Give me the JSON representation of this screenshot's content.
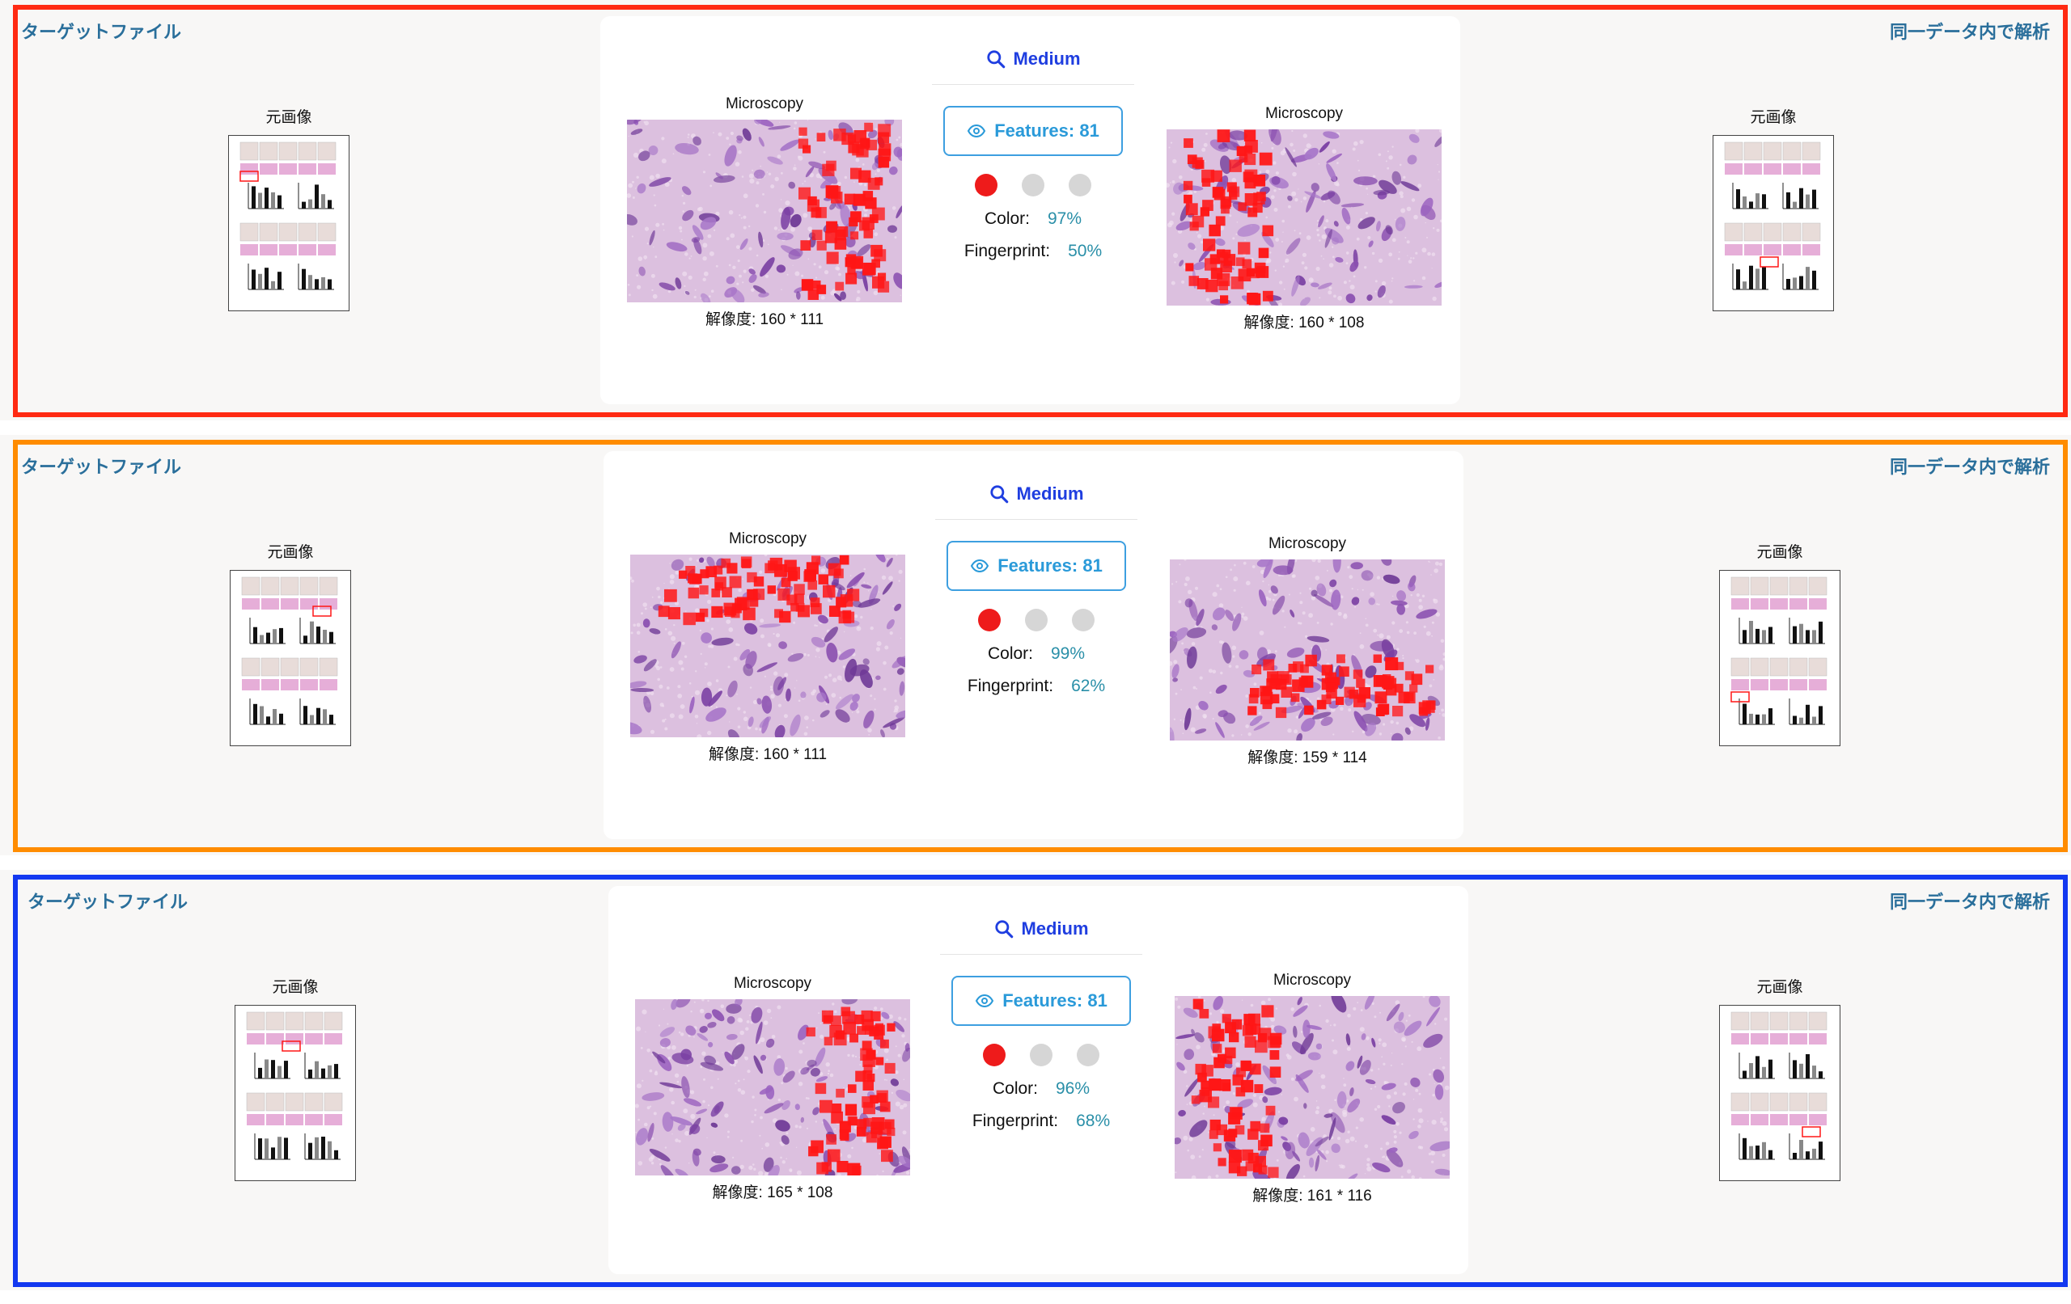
{
  "rows": [
    {
      "frame_color": "#ff2a12",
      "target_label": "ターゲットファイル",
      "same_data_label": "同一データ内で解析",
      "left_caption": "元画像",
      "right_caption": "元画像",
      "medium_label": "Medium",
      "features_label": "Features: 81",
      "left_title": "Microscopy",
      "left_resolution": "解像度: 160 * 111",
      "right_title": "Microscopy",
      "right_resolution": "解像度: 160 * 108",
      "color_label": "Color:",
      "color_value": "97%",
      "fingerprint_label": "Fingerprint:",
      "fingerprint_value": "50%"
    },
    {
      "frame_color": "#ff8c00",
      "target_label": "ターゲットファイル",
      "same_data_label": "同一データ内で解析",
      "left_caption": "元画像",
      "right_caption": "元画像",
      "medium_label": "Medium",
      "features_label": "Features: 81",
      "left_title": "Microscopy",
      "left_resolution": "解像度: 160 * 111",
      "right_title": "Microscopy",
      "right_resolution": "解像度: 159 * 114",
      "color_label": "Color:",
      "color_value": "99%",
      "fingerprint_label": "Fingerprint:",
      "fingerprint_value": "62%"
    },
    {
      "frame_color": "#1238f0",
      "target_label": "ターゲットファイル",
      "same_data_label": "同一データ内で解析",
      "left_caption": "元画像",
      "right_caption": "元画像",
      "medium_label": "Medium",
      "features_label": "Features: 81",
      "left_title": "Microscopy",
      "left_resolution": "解像度: 165 * 108",
      "right_title": "Microscopy",
      "right_resolution": "解像度: 161 * 116",
      "color_label": "Color:",
      "color_value": "96%",
      "fingerprint_label": "Fingerprint:",
      "fingerprint_value": "68%"
    }
  ],
  "colors": {
    "link": "#2a6f9b",
    "medium": "#1f3ee0",
    "feature": "#2a9ad9",
    "stat_value": "#2a8fa8",
    "dot_active": "#ee1b1b",
    "dot_idle": "#d6d6d6"
  },
  "icons": {
    "medium": "search-icon",
    "features": "eye-icon"
  }
}
